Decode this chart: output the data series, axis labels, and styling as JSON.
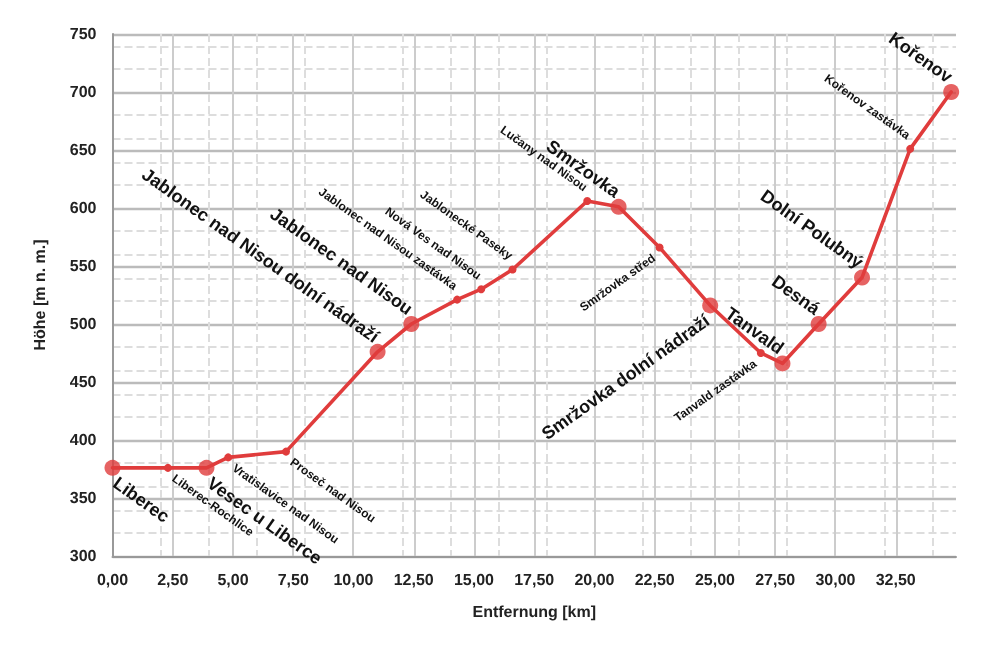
{
  "chart_data": {
    "type": "line",
    "xlabel": "Entfernung [km]",
    "ylabel": "Höhe [m n. m.]",
    "xlim": [
      0,
      35
    ],
    "ylim": [
      300,
      750
    ],
    "xticks": [
      {
        "value": 0,
        "label": "0,00"
      },
      {
        "value": 2.5,
        "label": "2,50"
      },
      {
        "value": 5,
        "label": "5,00"
      },
      {
        "value": 7.5,
        "label": "7,50"
      },
      {
        "value": 10,
        "label": "10,00"
      },
      {
        "value": 12.5,
        "label": "12,50"
      },
      {
        "value": 15,
        "label": "15,00"
      },
      {
        "value": 17.5,
        "label": "17,50"
      },
      {
        "value": 20,
        "label": "20,00"
      },
      {
        "value": 22.5,
        "label": "22,50"
      },
      {
        "value": 25,
        "label": "25,00"
      },
      {
        "value": 27.5,
        "label": "27,50"
      },
      {
        "value": 30,
        "label": "30,00"
      },
      {
        "value": 32.5,
        "label": "32,50"
      }
    ],
    "yticks": [
      300,
      350,
      400,
      450,
      500,
      550,
      600,
      650,
      700,
      750
    ],
    "grid": true,
    "marker": "circle",
    "line_style": "solid",
    "series": [
      {
        "type": "line",
        "color": "#e03c3c",
        "x": [
          0,
          2.3,
          3.9,
          4.8,
          7.2,
          11.0,
          12.4,
          14.3,
          15.3,
          16.6,
          19.7,
          21.0,
          22.7,
          24.8,
          26.9,
          27.8,
          29.3,
          31.1,
          33.1,
          34.8
        ],
        "values": [
          376,
          376,
          376,
          385,
          390,
          476,
          500,
          521,
          530,
          547,
          606,
          601,
          566,
          516,
          475,
          466,
          500,
          540,
          651,
          700
        ]
      },
      {
        "type": "scatter",
        "color": "#e03c3c",
        "x": [
          0,
          3.9,
          11.0,
          12.4,
          21.0,
          24.8,
          27.8,
          29.3,
          31.1,
          34.8
        ],
        "values": [
          376,
          376,
          476,
          500,
          601,
          516,
          466,
          500,
          540,
          700
        ]
      }
    ],
    "annotations": [
      {
        "text": "Liberec",
        "x": 0,
        "y": 376
      },
      {
        "text": "Liberec-Rochlice",
        "x": 2.3,
        "y": 376
      },
      {
        "text": "Vesec u Liberce",
        "x": 3.9,
        "y": 376
      },
      {
        "text": "Vratislavice nad Nisou",
        "x": 4.8,
        "y": 385
      },
      {
        "text": "Proseč nad Nisou",
        "x": 7.2,
        "y": 390
      },
      {
        "text": "Jablonec nad Nisou dolní nádraží",
        "x": 11.0,
        "y": 476
      },
      {
        "text": "Jablonec nad Nisou",
        "x": 12.4,
        "y": 500
      },
      {
        "text": "Jablonec nad Nisou zastávka",
        "x": 14.3,
        "y": 521
      },
      {
        "text": "Nová Ves nad Nisou",
        "x": 15.3,
        "y": 530
      },
      {
        "text": "Jablonecké Paseky",
        "x": 16.6,
        "y": 547
      },
      {
        "text": "Lučany nad Nisou",
        "x": 19.7,
        "y": 606
      },
      {
        "text": "Smržovka",
        "x": 21.0,
        "y": 601
      },
      {
        "text": "Smržovka střed",
        "x": 22.7,
        "y": 566
      },
      {
        "text": "Smržovka dolní nádraží",
        "x": 24.8,
        "y": 516
      },
      {
        "text": "Tanvald zastávka",
        "x": 26.9,
        "y": 475
      },
      {
        "text": "Tanvald",
        "x": 27.8,
        "y": 466
      },
      {
        "text": "Desná",
        "x": 29.3,
        "y": 500
      },
      {
        "text": "Dolní Polubný",
        "x": 31.1,
        "y": 540
      },
      {
        "text": "Kořenov zastávka",
        "x": 33.1,
        "y": 651
      },
      {
        "text": "Kořenov",
        "x": 34.8,
        "y": 700
      }
    ]
  }
}
